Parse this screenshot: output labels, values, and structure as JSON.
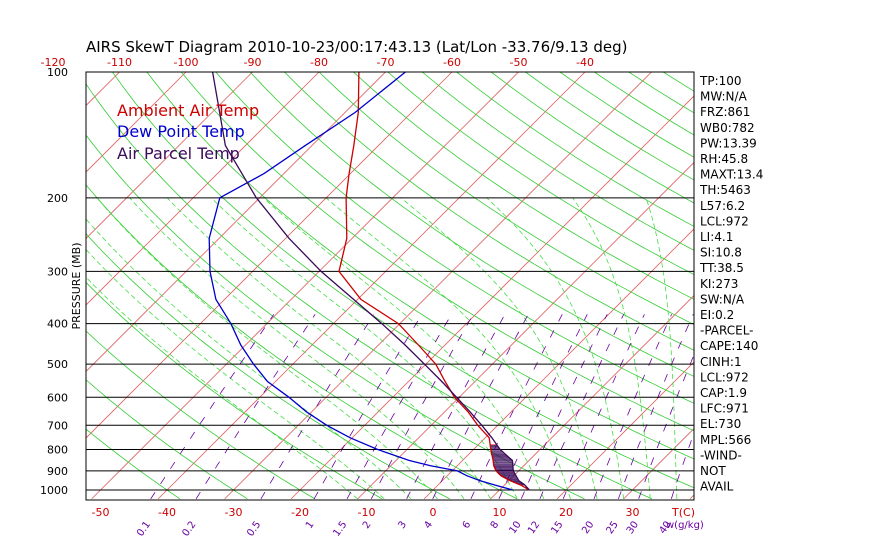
{
  "chart_data": {
    "type": "line",
    "title": "AIRS SkewT Diagram 2010-10-23/00:17:43.13 (Lat/Lon -33.76/9.13 deg)",
    "ylabel": "PRESSURE (MB)",
    "pressure_ticks": [
      "100",
      "200",
      "300",
      "400",
      "500",
      "600",
      "700",
      "800",
      "900",
      "1000"
    ],
    "temp_ticks_top": [
      "-120",
      "-110",
      "-100",
      "-90",
      "-80",
      "-70",
      "-60",
      "-50",
      "-40"
    ],
    "temp_ticks_bottom": [
      "-50",
      "-40",
      "-30",
      "-20",
      "-10",
      "0",
      "10",
      "20",
      "30"
    ],
    "temp_unit_label": "T(C)",
    "mixing_ratio_ticks": [
      "0.1",
      "0.2",
      "0.5",
      "1",
      "1.5",
      "2",
      "3",
      "4",
      "6",
      "8",
      "10",
      "12",
      "15",
      "20",
      "25",
      "30",
      "40"
    ],
    "mixing_ratio_unit_label": "w(g/kg)",
    "legend": [
      {
        "label": "Ambient Air Temp",
        "color": "#cc0000"
      },
      {
        "label": "Dew Point Temp",
        "color": "#0000cc"
      },
      {
        "label": "Air Parcel Temp",
        "color": "#3a0a5a"
      }
    ],
    "ambient_temp_profile": [
      [
        1000,
        14.5
      ],
      [
        975,
        12.6
      ],
      [
        950,
        10.2
      ],
      [
        925,
        8.1
      ],
      [
        900,
        6.6
      ],
      [
        875,
        5.5
      ],
      [
        850,
        4.6
      ],
      [
        800,
        2.6
      ],
      [
        750,
        0.6
      ],
      [
        700,
        -3.0
      ],
      [
        650,
        -6.5
      ],
      [
        600,
        -10.7
      ],
      [
        550,
        -14.5
      ],
      [
        500,
        -18.5
      ],
      [
        450,
        -24.0
      ],
      [
        400,
        -30.2
      ],
      [
        350,
        -39.5
      ],
      [
        300,
        -47.0
      ],
      [
        250,
        -50.8
      ],
      [
        200,
        -57.0
      ],
      [
        175,
        -60.2
      ],
      [
        150,
        -63.7
      ],
      [
        125,
        -68.0
      ],
      [
        100,
        -74.0
      ]
    ],
    "dewpoint_profile": [
      [
        1000,
        12.0
      ],
      [
        975,
        8.8
      ],
      [
        950,
        5.7
      ],
      [
        925,
        3.0
      ],
      [
        900,
        0.8
      ],
      [
        875,
        -4.0
      ],
      [
        850,
        -8.0
      ],
      [
        800,
        -14.4
      ],
      [
        750,
        -20.3
      ],
      [
        700,
        -25.7
      ],
      [
        650,
        -30.8
      ],
      [
        600,
        -35.6
      ],
      [
        550,
        -41.2
      ],
      [
        500,
        -45.9
      ],
      [
        450,
        -50.7
      ],
      [
        400,
        -55.4
      ],
      [
        350,
        -61.3
      ],
      [
        300,
        -66.4
      ],
      [
        250,
        -71.5
      ],
      [
        200,
        -76.0
      ],
      [
        175,
        -73.0
      ],
      [
        150,
        -71.0
      ],
      [
        125,
        -68.5
      ],
      [
        100,
        -67.0
      ]
    ],
    "parcel_profile": [
      [
        1000,
        14.5
      ],
      [
        972,
        13.0
      ],
      [
        950,
        11.5
      ],
      [
        900,
        9.2
      ],
      [
        850,
        7.5
      ],
      [
        800,
        4.0
      ],
      [
        750,
        1.0
      ],
      [
        700,
        -2.4
      ],
      [
        650,
        -6.2
      ],
      [
        600,
        -10.4
      ],
      [
        550,
        -15.0
      ],
      [
        500,
        -20.2
      ],
      [
        450,
        -26.0
      ],
      [
        400,
        -32.7
      ],
      [
        350,
        -40.6
      ],
      [
        300,
        -49.7
      ],
      [
        250,
        -59.5
      ],
      [
        200,
        -70.5
      ],
      [
        150,
        -83.0
      ],
      [
        100,
        -96.0
      ]
    ],
    "hatched_region_pressure_range": [
      780,
      972
    ],
    "indices": [
      "TP:100",
      "MW:N/A",
      "FRZ:861",
      "WB0:782",
      "PW:13.39",
      "RH:45.8",
      "MAXT:13.4",
      "TH:5463",
      "L57:6.2",
      "LCL:972",
      "LI:4.1",
      "SI:10.8",
      "TT:38.5",
      "KI:273",
      "SW:N/A",
      "EI:0.2",
      "-PARCEL-",
      "CAPE:140",
      "CINH:1",
      "LCL:972",
      "CAP:1.9",
      "LFC:971",
      "EL:730",
      "MPL:566",
      "-WIND-",
      "NOT",
      "AVAIL"
    ],
    "colors": {
      "ambient": "#cc0000",
      "dewpoint": "#0000cc",
      "parcel": "#3a0a5a",
      "isotherm": "#e06060",
      "dry_adiabat": "#33cc33",
      "moist_adiabat": "#44dd44",
      "mixing_ratio": "#6a00a0",
      "isobar": "#000000"
    }
  }
}
